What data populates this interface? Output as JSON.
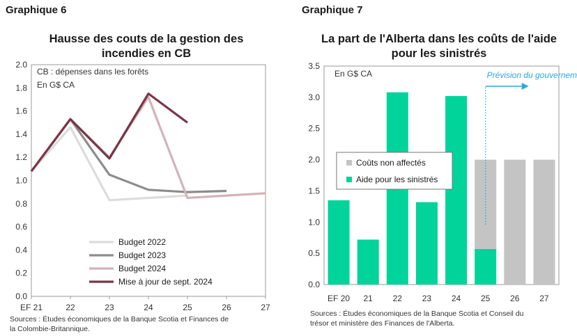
{
  "chart_data": [
    {
      "type": "line",
      "exhibit_label": "Graphique 6",
      "title_lines": [
        "Hausse des couts de la gestion des",
        "incendies en CB"
      ],
      "notes": [
        "CB : dépenses dans les forêts",
        "En G$ CA"
      ],
      "categories": [
        "EF 21",
        "22",
        "23",
        "24",
        "25",
        "26",
        "27"
      ],
      "ylim": [
        0,
        2
      ],
      "yticks": [
        "2.0",
        "1.8",
        "1.6",
        "1.4",
        "1.2",
        "1.0",
        "0.8",
        "0.6",
        "0.4",
        "0.2",
        "0.0"
      ],
      "grid": false,
      "legend_position": "bottom-left",
      "series": [
        {
          "name": "Budget 2022",
          "color": "#dcdcdc",
          "values": [
            1.08,
            1.46,
            0.83,
            0.85,
            0.87,
            null,
            null
          ]
        },
        {
          "name": "Budget 2023",
          "color": "#8c8c8c",
          "values": [
            1.08,
            1.53,
            1.05,
            0.92,
            0.9,
            0.91,
            null
          ]
        },
        {
          "name": "Budget 2024",
          "color": "#d4b2b9",
          "values": [
            1.08,
            1.53,
            1.2,
            1.72,
            0.85,
            0.87,
            0.89
          ]
        },
        {
          "name": "Mise à jour de sept. 2024",
          "color": "#7a3548",
          "values": [
            1.08,
            1.53,
            1.19,
            1.75,
            1.5,
            null,
            null
          ]
        }
      ],
      "source_lines": [
        "Sources : Études économiques de la Banque Scotia et Finances de",
        "la Colombie-Britannique."
      ]
    },
    {
      "type": "bar",
      "stacked": true,
      "exhibit_label": "Graphique 7",
      "title_lines": [
        "La part de l'Alberta dans les coûts de l'aide",
        "pour les sinistrés"
      ],
      "note": "En G$ CA",
      "annotation": "Prévision du gouvernement",
      "categories": [
        "EF 20",
        "21",
        "22",
        "23",
        "24",
        "25",
        "26",
        "27"
      ],
      "ylim": [
        0,
        3.5
      ],
      "yticks": [
        "3.5",
        "3.0",
        "2.5",
        "2.0",
        "1.5",
        "1.0",
        "0.5",
        "0.0"
      ],
      "grid": false,
      "legend_position": "middle-left",
      "series": [
        {
          "name": "Aide pour les sinistrés",
          "color": "#00d49a",
          "values": [
            1.35,
            0.72,
            3.08,
            1.32,
            3.02,
            0.57,
            0,
            0
          ]
        },
        {
          "name": "Coûts non affectés",
          "color": "#c4c4c4",
          "values": [
            0,
            0,
            0,
            0,
            0,
            1.43,
            2.0,
            2.0
          ]
        }
      ],
      "legend_order": [
        "Coûts non affectés",
        "Aide pour les sinistrés"
      ],
      "annotation_color": "#29a8e0",
      "source_lines": [
        "Sources : Études économiques de la Banque Scotia et Conseil du",
        "trésor et ministère des Finances de l'Alberta."
      ]
    }
  ]
}
